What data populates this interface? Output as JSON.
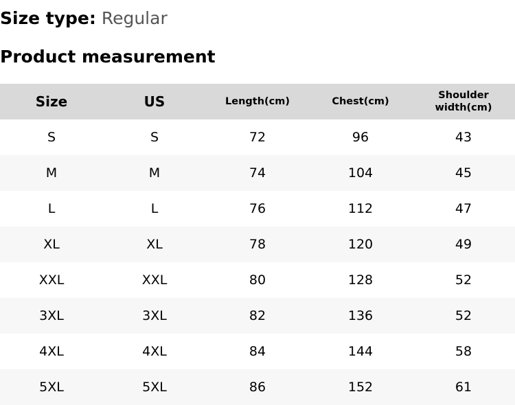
{
  "size_type": {
    "label": "Size type:",
    "value": "Regular"
  },
  "title": "Product measurement",
  "table": {
    "headers": [
      "Size",
      "US",
      "Length(cm)",
      "Chest(cm)",
      "Shoulder width(cm)"
    ],
    "header_bg": "#d9d9d9",
    "rows": [
      [
        "S",
        "S",
        "72",
        "96",
        "43"
      ],
      [
        "M",
        "M",
        "74",
        "104",
        "45"
      ],
      [
        "L",
        "L",
        "76",
        "112",
        "47"
      ],
      [
        "XL",
        "XL",
        "78",
        "120",
        "49"
      ],
      [
        "XXL",
        "XXL",
        "80",
        "128",
        "52"
      ],
      [
        "3XL",
        "3XL",
        "82",
        "136",
        "52"
      ],
      [
        "4XL",
        "4XL",
        "84",
        "144",
        "58"
      ],
      [
        "5XL",
        "5XL",
        "86",
        "152",
        "61"
      ]
    ]
  }
}
